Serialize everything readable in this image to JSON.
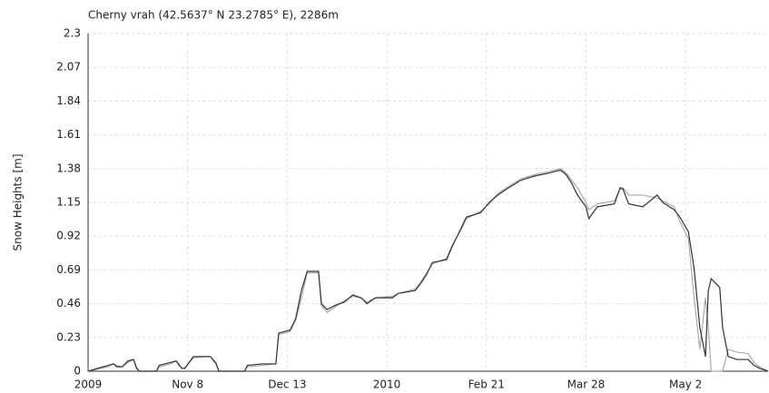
{
  "chart_data": {
    "type": "line",
    "title": "Cherny vrah (42.5637° N 23.2785° E), 2286m",
    "y_label": "Snow Heights [m]",
    "x": [
      0,
      7,
      9,
      10,
      12,
      14,
      16,
      17,
      18,
      24,
      25,
      29,
      31,
      32,
      33,
      34,
      37,
      43,
      45,
      46,
      55,
      56,
      61,
      66,
      67,
      71,
      73,
      75,
      77,
      81,
      82,
      84,
      87,
      90,
      93,
      96,
      98,
      101,
      107,
      109,
      115,
      117,
      119,
      121,
      126,
      128,
      131,
      133,
      138,
      141,
      144,
      147,
      152,
      157,
      162,
      166,
      168,
      170,
      172,
      175,
      176,
      179,
      185,
      187,
      188,
      190,
      195,
      200,
      202,
      206,
      208,
      211,
      213,
      215,
      217,
      218,
      219,
      222,
      223,
      225,
      228,
      232,
      234,
      236,
      239
    ],
    "series": [
      {
        "color": "#aaaaaa",
        "values": [
          0,
          0.03,
          0.05,
          0.04,
          0.03,
          0.06,
          0.08,
          0.03,
          0,
          0,
          0.03,
          0.05,
          0.07,
          0.05,
          0.02,
          0.02,
          0.09,
          0.1,
          0.06,
          0,
          0,
          0.03,
          0.04,
          0.05,
          0.25,
          0.27,
          0.35,
          0.5,
          0.67,
          0.67,
          0.45,
          0.4,
          0.44,
          0.48,
          0.51,
          0.5,
          0.47,
          0.5,
          0.51,
          0.53,
          0.56,
          0.61,
          0.67,
          0.73,
          0.77,
          0.86,
          0.96,
          1.04,
          1.09,
          1.14,
          1.21,
          1.25,
          1.31,
          1.34,
          1.36,
          1.38,
          1.35,
          1.3,
          1.25,
          1.15,
          1.1,
          1.14,
          1.16,
          1.24,
          1.25,
          1.2,
          1.2,
          1.18,
          1.16,
          1.12,
          1.02,
          0.9,
          0.5,
          0.15,
          0.5,
          0.3,
          0,
          0,
          0,
          0.15,
          0.13,
          0.12,
          0.06,
          0.03,
          0
        ]
      },
      {
        "color": "#333333",
        "values": [
          0,
          0.04,
          0.05,
          0.03,
          0.03,
          0.07,
          0.08,
          0.02,
          0,
          0,
          0.04,
          0.06,
          0.07,
          0.04,
          0.02,
          0.02,
          0.1,
          0.1,
          0.05,
          0,
          0,
          0.04,
          0.05,
          0.05,
          0.26,
          0.28,
          0.36,
          0.55,
          0.68,
          0.68,
          0.46,
          0.42,
          0.45,
          0.47,
          0.52,
          0.5,
          0.46,
          0.5,
          0.5,
          0.53,
          0.55,
          0.6,
          0.66,
          0.74,
          0.76,
          0.85,
          0.97,
          1.05,
          1.08,
          1.15,
          1.2,
          1.24,
          1.3,
          1.33,
          1.35,
          1.37,
          1.34,
          1.28,
          1.2,
          1.12,
          1.04,
          1.12,
          1.14,
          1.25,
          1.24,
          1.14,
          1.12,
          1.2,
          1.15,
          1.1,
          1.05,
          0.95,
          0.7,
          0.3,
          0.1,
          0.55,
          0.63,
          0.57,
          0.3,
          0.1,
          0.08,
          0.08,
          0.04,
          0.02,
          0
        ]
      }
    ],
    "xlim": [
      0,
      239
    ],
    "xticks": [
      {
        "value": 0,
        "label": "2009"
      },
      {
        "value": 35,
        "label": "Nov 8"
      },
      {
        "value": 70,
        "label": "Dec 13"
      },
      {
        "value": 105,
        "label": "2010"
      },
      {
        "value": 140,
        "label": "Feb 21"
      },
      {
        "value": 175,
        "label": "Mar 28"
      },
      {
        "value": 210,
        "label": "May 2"
      }
    ],
    "ylim": [
      0,
      2.3
    ],
    "yticks": [
      0,
      0.23,
      0.46,
      0.69,
      0.92,
      1.15,
      1.38,
      1.61,
      1.84,
      2.07,
      2.3
    ],
    "grid": true
  }
}
